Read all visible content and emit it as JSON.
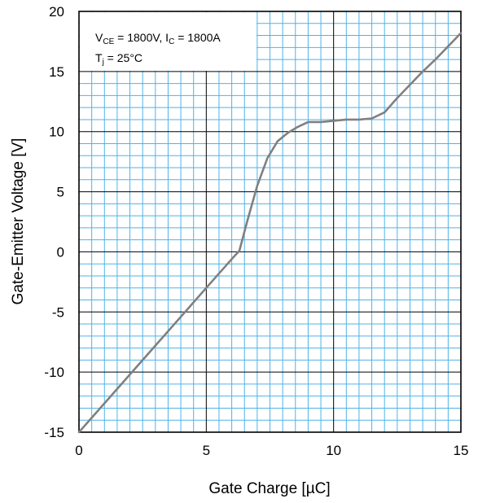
{
  "chart_data": {
    "type": "line",
    "title": "",
    "xlabel": "Gate Charge [µC]",
    "ylabel": "Gate-Emitter Voltage [V]",
    "xlim": [
      0,
      15
    ],
    "ylim": [
      -15,
      20
    ],
    "x_ticks": [
      0,
      5,
      10,
      15
    ],
    "y_ticks": [
      -15,
      -10,
      -5,
      0,
      5,
      10,
      15,
      20
    ],
    "x_tick_labels": [
      "0",
      "5",
      "10",
      "15"
    ],
    "y_tick_labels": [
      "-15",
      "-10",
      "-5",
      "0",
      "5",
      "10",
      "15",
      "20"
    ],
    "grid": true,
    "annotations": [
      {
        "parts": [
          {
            "text": "V",
            "sub": false
          },
          {
            "text": "CE",
            "sub": true
          },
          {
            "text": " = 1800V, I",
            "sub": false
          },
          {
            "text": "C",
            "sub": true
          },
          {
            "text": " = 1800A",
            "sub": false
          }
        ]
      },
      {
        "parts": [
          {
            "text": "T",
            "sub": false
          },
          {
            "text": "j",
            "sub": true
          },
          {
            "text": " = 25°C",
            "sub": false
          }
        ]
      }
    ],
    "series": [
      {
        "x": [
          0,
          1,
          2,
          3,
          4,
          5,
          6,
          6.3,
          6.6,
          7.0,
          7.4,
          7.8,
          8.2,
          8.6,
          9.0,
          9.5,
          10.0,
          10.5,
          11.0,
          11.5,
          12.0,
          12.5,
          13.0,
          13.5,
          14.0,
          14.5,
          15.0
        ],
        "y": [
          -15,
          -12.6,
          -10.2,
          -7.8,
          -5.4,
          -3.0,
          -0.6,
          0.1,
          2.5,
          5.5,
          7.8,
          9.2,
          9.9,
          10.4,
          10.8,
          10.8,
          10.9,
          11.0,
          11.0,
          11.1,
          11.6,
          12.8,
          13.9,
          15.0,
          16.0,
          17.1,
          18.2
        ]
      }
    ]
  }
}
